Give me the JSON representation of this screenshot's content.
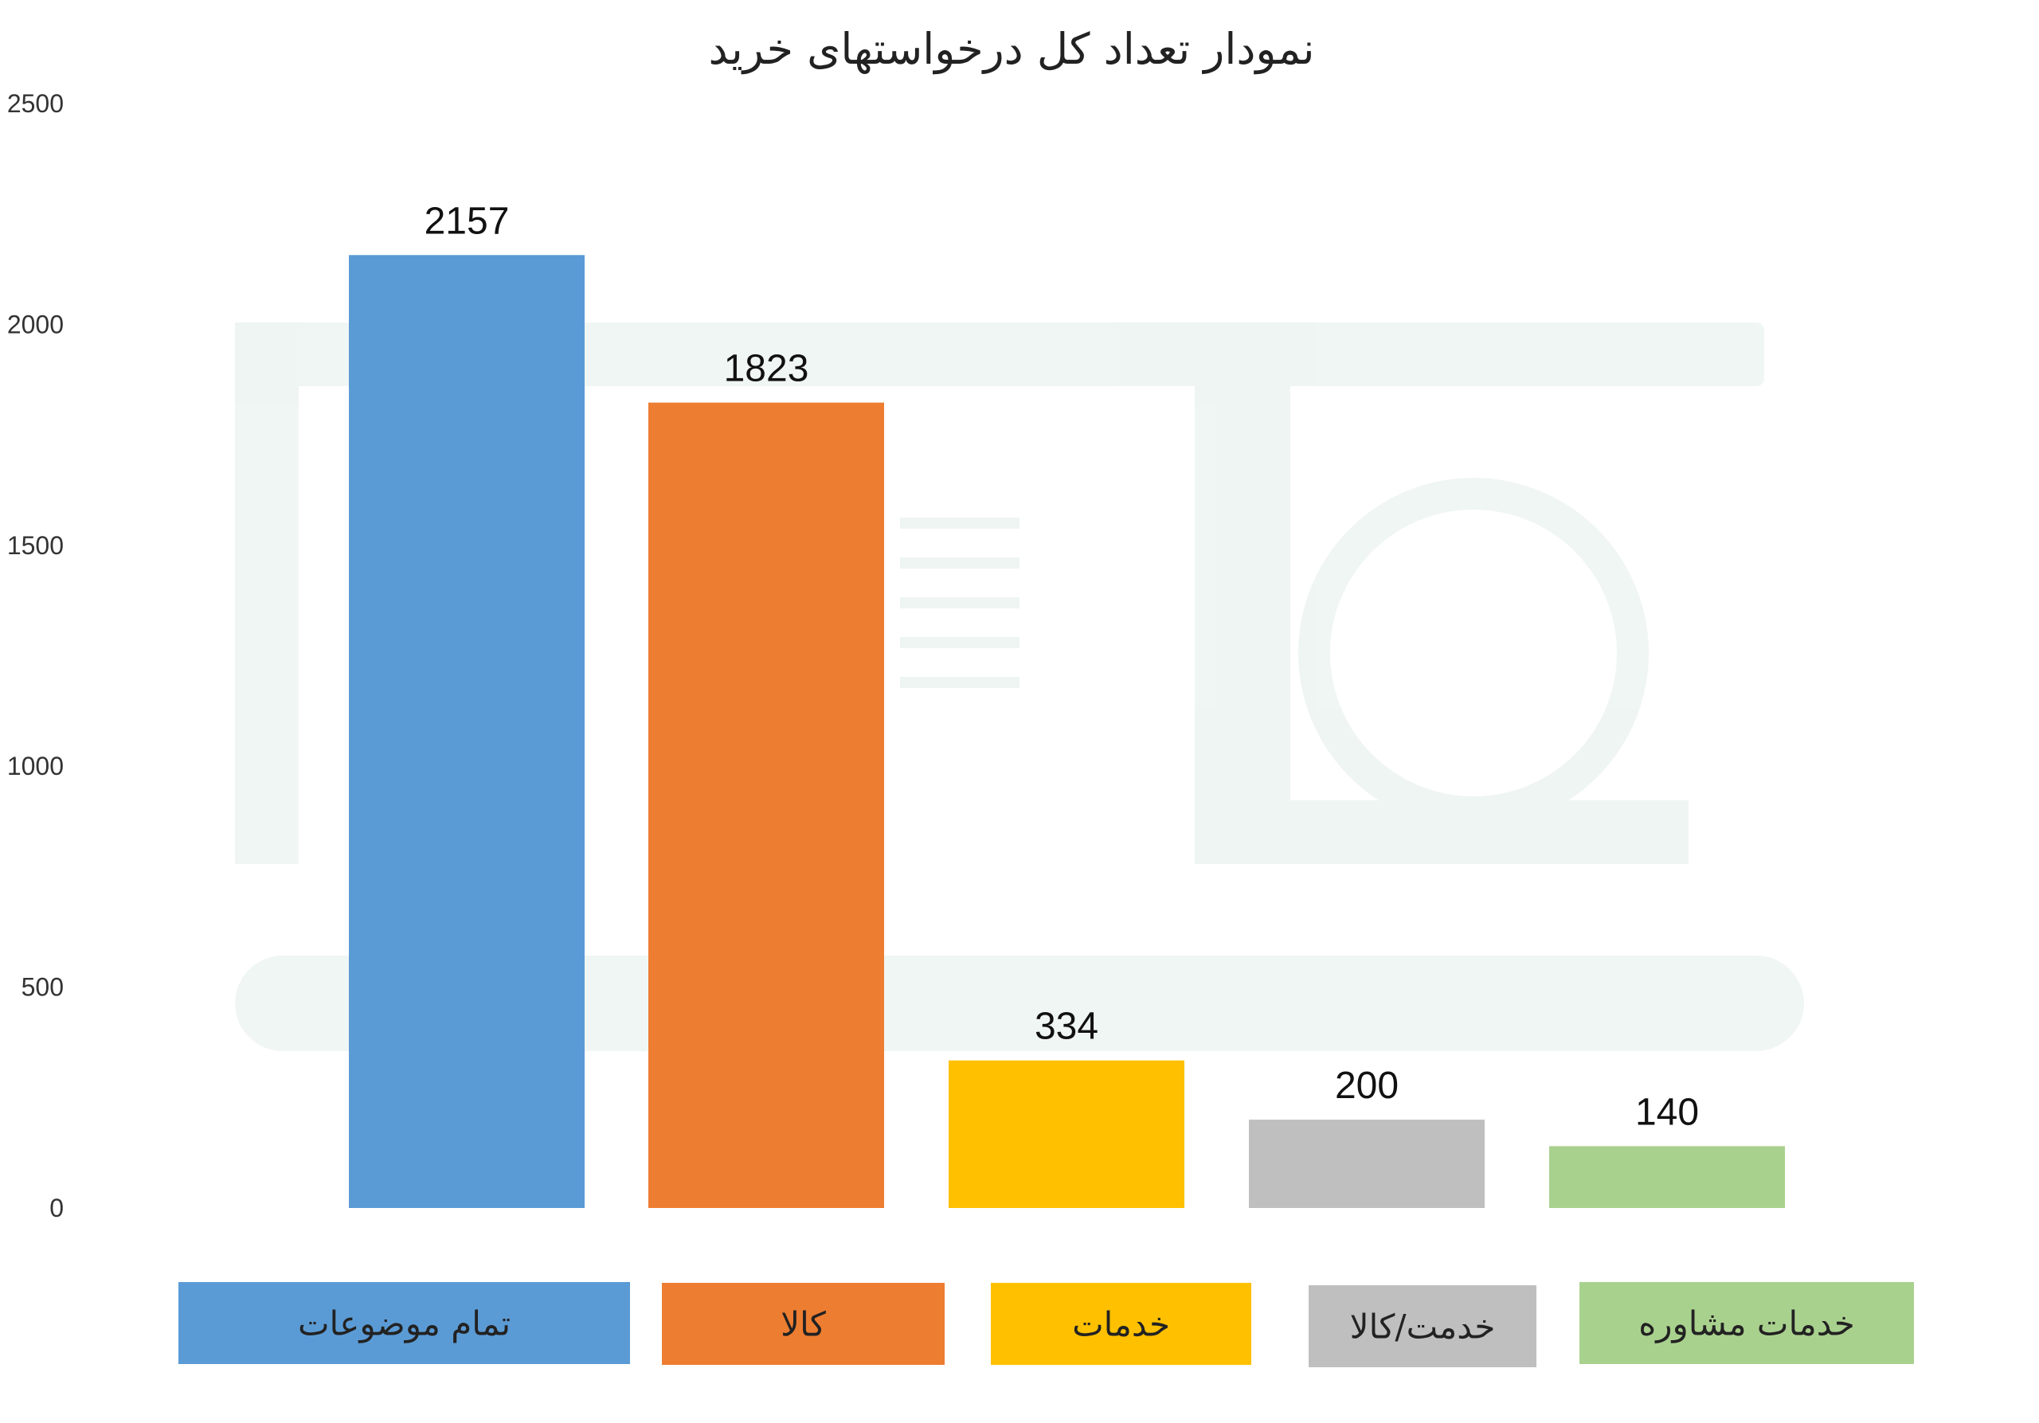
{
  "chart_data": {
    "type": "bar",
    "title": "نمودار تعداد کل درخواستهای خرید",
    "categories": [
      "تمام موضوعات",
      "کالا",
      "خدمات",
      "خدمت/کالا",
      "خدمات مشاوره"
    ],
    "values": [
      2157,
      1823,
      334,
      200,
      140
    ],
    "colors": [
      "#5b9bd5",
      "#ed7d31",
      "#ffc000",
      "#bfbfbf",
      "#a9d18e"
    ],
    "yticks": [
      0,
      500,
      1000,
      1500,
      2000,
      2500
    ],
    "ylim": [
      0,
      2500
    ],
    "grid": false,
    "legend": "bottom",
    "data_labels": true
  }
}
